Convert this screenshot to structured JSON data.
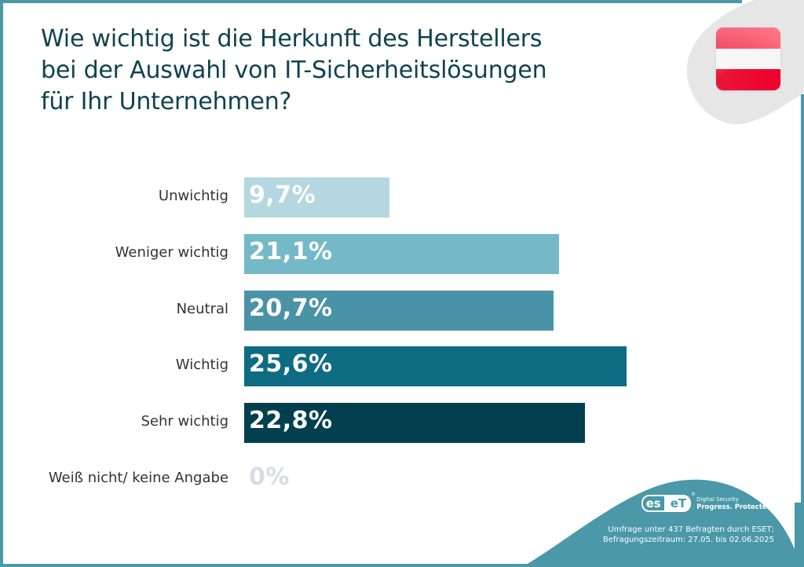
{
  "title_lines": [
    "Wie wichtig ist die Herkunft des Herstellers",
    "bei der Auswahl von IT-Sicherheitslösungen",
    "für Ihr Unternehmen?"
  ],
  "flag": {
    "name": "Austria",
    "colors": [
      "#ee1a3a",
      "#f6f6f6",
      "#ee1a3a"
    ]
  },
  "colors": {
    "frame": "#4a98a8",
    "title": "#0e4350",
    "blob": "#e6e6e6",
    "zero_value": "#d6dde4"
  },
  "chart_data": {
    "type": "bar",
    "orientation": "horizontal",
    "title": "Wie wichtig ist die Herkunft des Herstellers bei der Auswahl von IT-Sicherheitslösungen für Ihr Unternehmen?",
    "xlabel": "",
    "ylabel": "",
    "unit": "%",
    "xlim": [
      0,
      25.6
    ],
    "grid": false,
    "legend": "none",
    "categories": [
      "Unwichtig",
      "Weniger wichtig",
      "Neutral",
      "Wichtig",
      "Sehr wichtig",
      "Weiß nicht/ keine Angabe"
    ],
    "values": [
      9.7,
      21.1,
      20.7,
      25.6,
      22.8,
      0
    ],
    "value_labels": [
      "9,7%",
      "21,1%",
      "20,7%",
      "25,6%",
      "22,8%",
      "0%"
    ],
    "bar_colors": [
      "#b4d7e0",
      "#75b9c8",
      "#4a93a6",
      "#0d6b82",
      "#033f4f",
      "#d6dde4"
    ]
  },
  "footer": {
    "logo_left": "es",
    "logo_right": "eT",
    "logo_reg": "®",
    "tagline_top": "Digital Security",
    "tagline_bottom": "Progress. Protected.",
    "note_lines": [
      "Umfrage unter 437 Befragten durch ESET;",
      "Befragungszeitraum: 27.05. bis 02.06.2025"
    ]
  }
}
